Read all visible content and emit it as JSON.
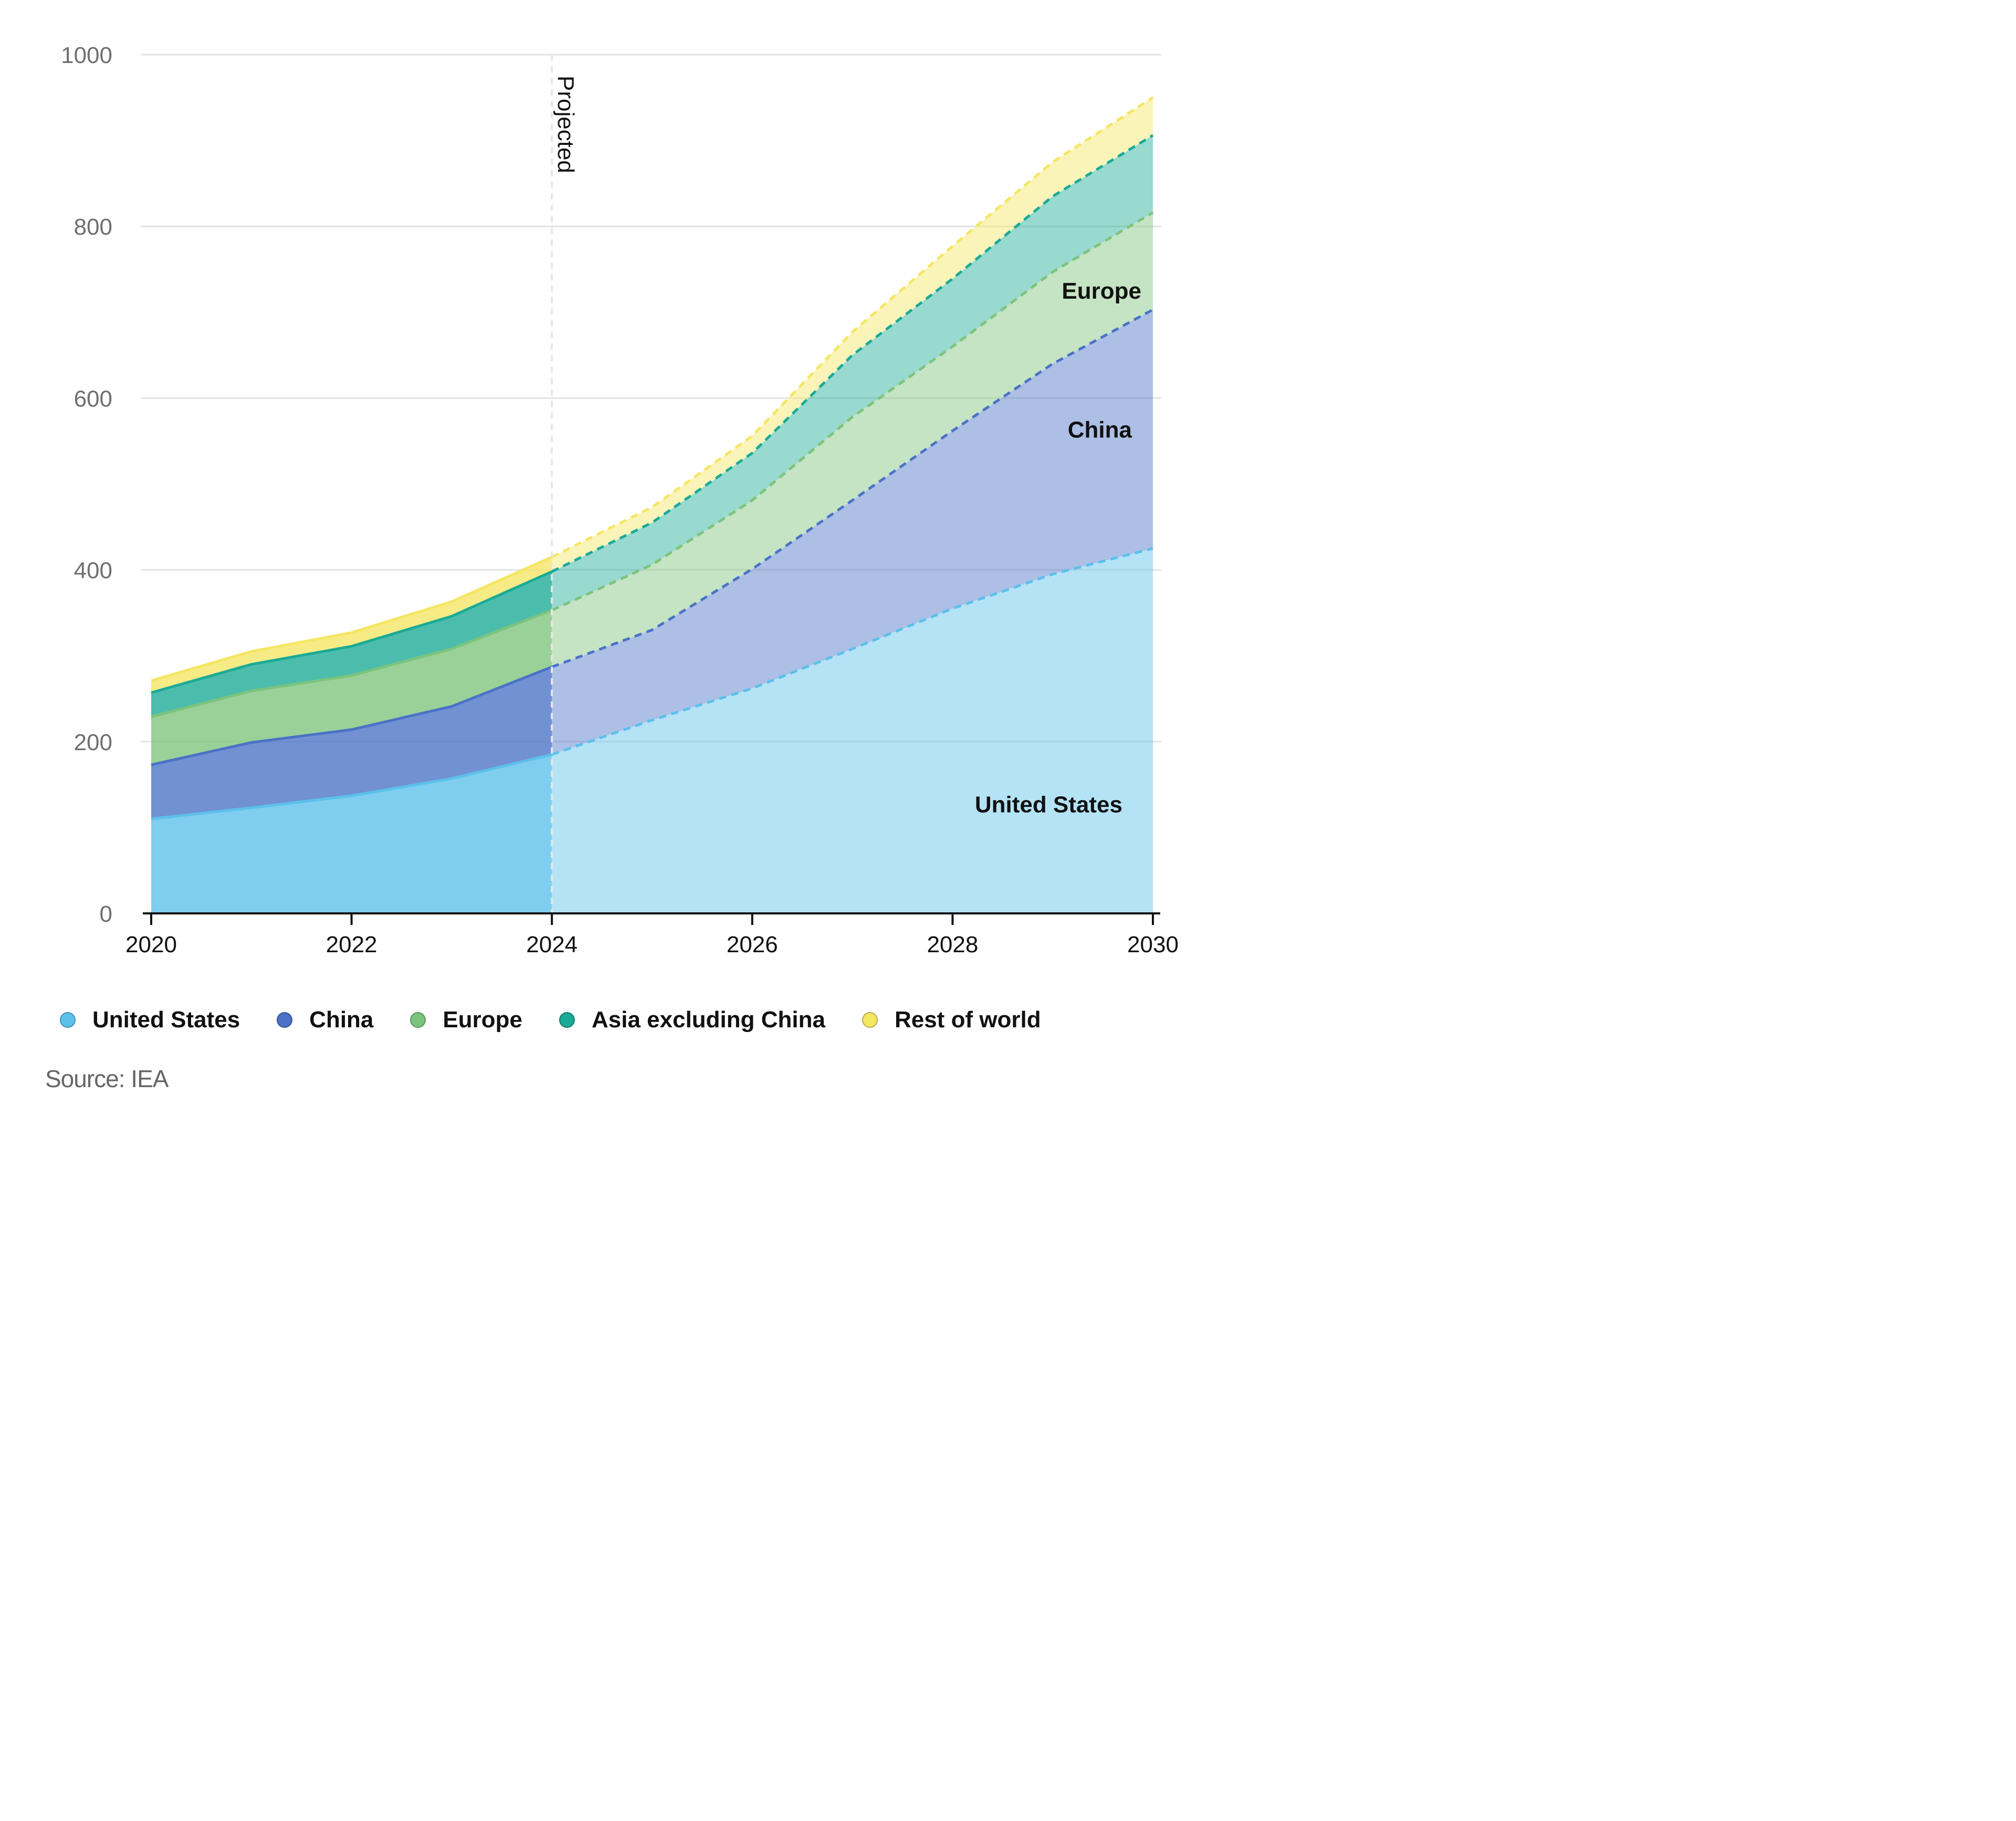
{
  "chart_data": {
    "type": "area",
    "stacked": true,
    "x": [
      2020,
      2021,
      2022,
      2023,
      2024,
      2025,
      2026,
      2027,
      2028,
      2029,
      2030
    ],
    "series": [
      {
        "name": "United States",
        "color": "#5bc0eb",
        "values": [
          110,
          123,
          137,
          157,
          185,
          225,
          262,
          308,
          355,
          395,
          425
        ]
      },
      {
        "name": "China",
        "color": "#4a72c6",
        "values": [
          63,
          76,
          77,
          84,
          102,
          105,
          139,
          173,
          207,
          245,
          278
        ]
      },
      {
        "name": "Europe",
        "color": "#7cc47c",
        "values": [
          56,
          60,
          63,
          67,
          66,
          76,
          80,
          97,
          98,
          107,
          113
        ]
      },
      {
        "name": "Asia excluding China",
        "color": "#1aaa96",
        "values": [
          28,
          31,
          34,
          38,
          45,
          49,
          55,
          72,
          79,
          88,
          90
        ]
      },
      {
        "name": "Rest of world",
        "color": "#f5e663",
        "values": [
          14,
          15,
          16,
          17,
          17,
          18,
          20,
          27,
          38,
          40,
          44
        ]
      }
    ],
    "projected_from": 2024,
    "projected_label": "Projected",
    "ylim": [
      0,
      1000
    ],
    "yticks": [
      "0",
      "200",
      "400",
      "600",
      "800",
      "1000"
    ],
    "xticks": [
      "2020",
      "2022",
      "2024",
      "2026",
      "2028",
      "2030"
    ],
    "inline_labels": {
      "united_states": "United States",
      "china": "China",
      "europe": "Europe"
    },
    "grid": true,
    "legend_position": "bottom",
    "source": "Source: IEA"
  }
}
